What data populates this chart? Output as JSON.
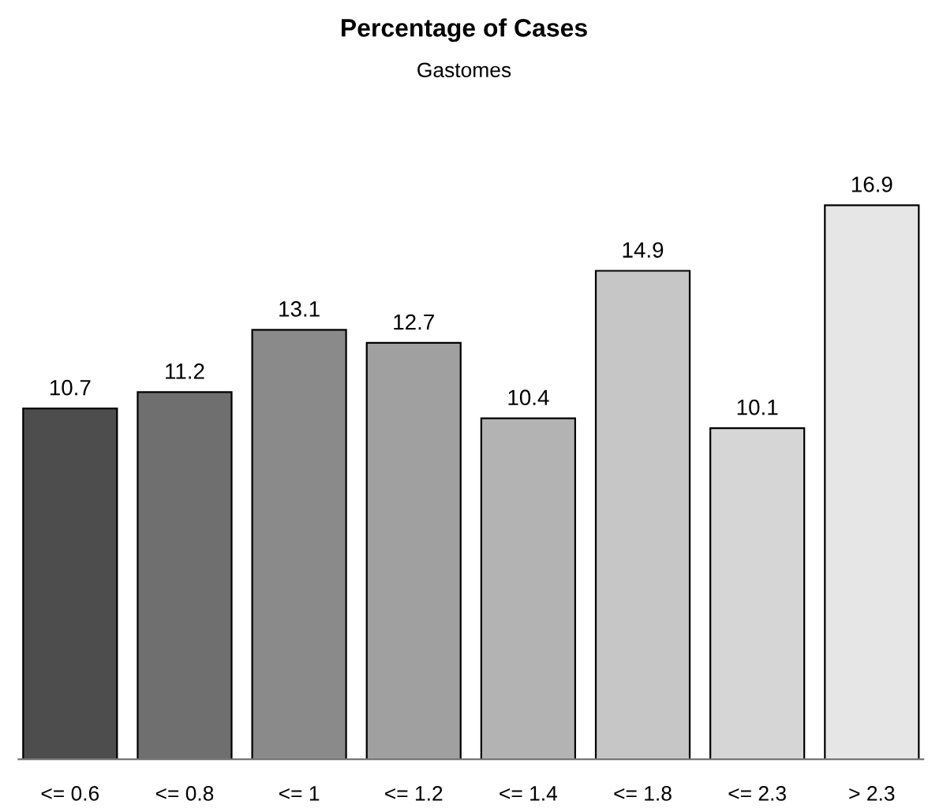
{
  "chart_data": {
    "type": "bar",
    "title": "Percentage of Cases",
    "subtitle": "Gastomes",
    "categories": [
      "<= 0.6",
      "<= 0.8",
      "<= 1",
      "<= 1.2",
      "<= 1.4",
      "<= 1.8",
      "<= 2.3",
      "> 2.3"
    ],
    "values": [
      10.7,
      11.2,
      13.1,
      12.7,
      10.4,
      14.9,
      10.1,
      16.9
    ],
    "colors": [
      "#4d4d4d",
      "#6f6f6f",
      "#8a8a8a",
      "#a0a0a0",
      "#b3b3b3",
      "#c6c6c6",
      "#d6d6d6",
      "#e6e6e6"
    ],
    "data_labels": true,
    "grid": false,
    "legend": false
  }
}
